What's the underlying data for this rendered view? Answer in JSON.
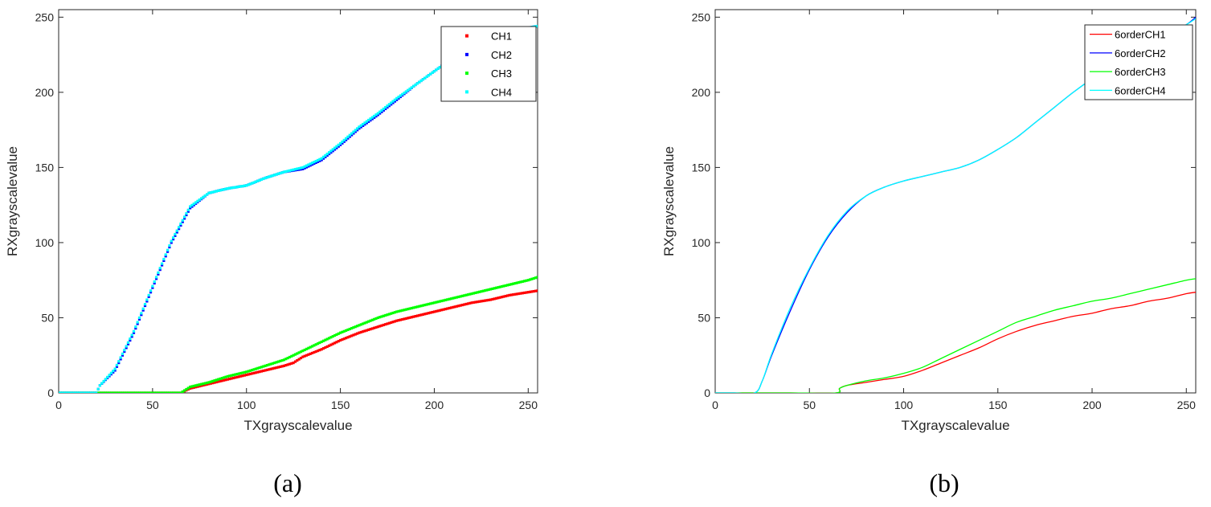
{
  "colors": {
    "ch1": "#ff0000",
    "ch2": "#0000ff",
    "ch3": "#00ff00",
    "ch4": "#00ffff"
  },
  "chart_data": [
    {
      "type": "scatter",
      "panel_label": "(a)",
      "xlabel": "TXgrayscalevalue",
      "ylabel": "RXgrayscalevalue",
      "xlim": [
        0,
        255
      ],
      "ylim": [
        0,
        255
      ],
      "xticks": [
        0,
        50,
        100,
        150,
        200,
        250
      ],
      "yticks": [
        0,
        50,
        100,
        150,
        200,
        250
      ],
      "xtick_labels": [
        "0",
        "50",
        "100",
        "150",
        "200",
        "250"
      ],
      "ytick_labels": [
        "0",
        "50",
        "100",
        "150",
        "200",
        "250"
      ],
      "grid": false,
      "legend_position": "top-right",
      "series": [
        {
          "name": "CH1",
          "color": "#ff0000",
          "points": [
            [
              0,
              0
            ],
            [
              20,
              0
            ],
            [
              40,
              0
            ],
            [
              65,
              0
            ],
            [
              70,
              3
            ],
            [
              80,
              6
            ],
            [
              90,
              9
            ],
            [
              100,
              12
            ],
            [
              110,
              15
            ],
            [
              120,
              18
            ],
            [
              125,
              20
            ],
            [
              130,
              24
            ],
            [
              140,
              29
            ],
            [
              150,
              35
            ],
            [
              160,
              40
            ],
            [
              170,
              44
            ],
            [
              180,
              48
            ],
            [
              190,
              51
            ],
            [
              200,
              54
            ],
            [
              210,
              57
            ],
            [
              220,
              60
            ],
            [
              230,
              62
            ],
            [
              240,
              65
            ],
            [
              250,
              67
            ],
            [
              255,
              68
            ]
          ]
        },
        {
          "name": "CH2",
          "color": "#0000ff",
          "points": [
            [
              0,
              0
            ],
            [
              10,
              0
            ],
            [
              20,
              0
            ],
            [
              22,
              5
            ],
            [
              30,
              15
            ],
            [
              40,
              40
            ],
            [
              50,
              70
            ],
            [
              60,
              100
            ],
            [
              70,
              123
            ],
            [
              80,
              133
            ],
            [
              90,
              136
            ],
            [
              100,
              138
            ],
            [
              110,
              143
            ],
            [
              120,
              147
            ],
            [
              130,
              149
            ],
            [
              140,
              155
            ],
            [
              150,
              165
            ],
            [
              160,
              176
            ],
            [
              170,
              185
            ],
            [
              180,
              195
            ],
            [
              190,
              205
            ],
            [
              200,
              214
            ],
            [
              210,
              223
            ],
            [
              220,
              230
            ],
            [
              230,
              236
            ],
            [
              240,
              240
            ],
            [
              250,
              243
            ],
            [
              255,
              244
            ]
          ]
        },
        {
          "name": "CH3",
          "color": "#00ff00",
          "points": [
            [
              0,
              0
            ],
            [
              20,
              0
            ],
            [
              40,
              0
            ],
            [
              65,
              0
            ],
            [
              70,
              4
            ],
            [
              80,
              7
            ],
            [
              90,
              11
            ],
            [
              100,
              14
            ],
            [
              110,
              18
            ],
            [
              120,
              22
            ],
            [
              130,
              28
            ],
            [
              140,
              34
            ],
            [
              150,
              40
            ],
            [
              160,
              45
            ],
            [
              170,
              50
            ],
            [
              180,
              54
            ],
            [
              190,
              57
            ],
            [
              200,
              60
            ],
            [
              210,
              63
            ],
            [
              220,
              66
            ],
            [
              230,
              69
            ],
            [
              240,
              72
            ],
            [
              250,
              75
            ],
            [
              255,
              77
            ]
          ]
        },
        {
          "name": "CH4",
          "color": "#00ffff",
          "points": [
            [
              0,
              0
            ],
            [
              10,
              0
            ],
            [
              20,
              0
            ],
            [
              22,
              5
            ],
            [
              30,
              16
            ],
            [
              40,
              41
            ],
            [
              50,
              71
            ],
            [
              60,
              101
            ],
            [
              70,
              124
            ],
            [
              80,
              133
            ],
            [
              90,
              136
            ],
            [
              100,
              138
            ],
            [
              110,
              143
            ],
            [
              120,
              147
            ],
            [
              130,
              150
            ],
            [
              140,
              156
            ],
            [
              150,
              166
            ],
            [
              160,
              177
            ],
            [
              170,
              186
            ],
            [
              180,
              196
            ],
            [
              190,
              205
            ],
            [
              200,
              214
            ],
            [
              210,
              223
            ],
            [
              220,
              230
            ],
            [
              230,
              235
            ],
            [
              240,
              240
            ],
            [
              250,
              243
            ],
            [
              255,
              244
            ]
          ]
        }
      ]
    },
    {
      "type": "line",
      "panel_label": "(b)",
      "xlabel": "TXgrayscalevalue",
      "ylabel": "RXgrayscalevalue",
      "xlim": [
        0,
        255
      ],
      "ylim": [
        0,
        255
      ],
      "xticks": [
        0,
        50,
        100,
        150,
        200,
        250
      ],
      "yticks": [
        0,
        50,
        100,
        150,
        200,
        250
      ],
      "xtick_labels": [
        "0",
        "50",
        "100",
        "150",
        "200",
        "250"
      ],
      "ytick_labels": [
        "0",
        "50",
        "100",
        "150",
        "200",
        "250"
      ],
      "grid": false,
      "legend_position": "top-right",
      "series": [
        {
          "name": "6orderCH1",
          "color": "#ff0000",
          "points": [
            [
              0,
              0
            ],
            [
              20,
              0
            ],
            [
              40,
              0
            ],
            [
              64,
              0
            ],
            [
              66,
              3
            ],
            [
              70,
              5
            ],
            [
              80,
              7
            ],
            [
              90,
              9
            ],
            [
              100,
              11
            ],
            [
              110,
              15
            ],
            [
              120,
              20
            ],
            [
              130,
              25
            ],
            [
              140,
              30
            ],
            [
              150,
              36
            ],
            [
              160,
              41
            ],
            [
              170,
              45
            ],
            [
              180,
              48
            ],
            [
              190,
              51
            ],
            [
              200,
              53
            ],
            [
              210,
              56
            ],
            [
              220,
              58
            ],
            [
              230,
              61
            ],
            [
              240,
              63
            ],
            [
              250,
              66
            ],
            [
              255,
              67
            ]
          ]
        },
        {
          "name": "6orderCH2",
          "color": "#0000ff",
          "points": [
            [
              0,
              0
            ],
            [
              10,
              0
            ],
            [
              21,
              0
            ],
            [
              25,
              8
            ],
            [
              30,
              25
            ],
            [
              40,
              55
            ],
            [
              50,
              82
            ],
            [
              60,
              104
            ],
            [
              70,
              120
            ],
            [
              80,
              131
            ],
            [
              90,
              137
            ],
            [
              100,
              141
            ],
            [
              110,
              144
            ],
            [
              120,
              147
            ],
            [
              130,
              150
            ],
            [
              140,
              155
            ],
            [
              150,
              162
            ],
            [
              160,
              170
            ],
            [
              170,
              180
            ],
            [
              180,
              190
            ],
            [
              190,
              200
            ],
            [
              200,
              209
            ],
            [
              210,
              217
            ],
            [
              220,
              225
            ],
            [
              230,
              232
            ],
            [
              240,
              238
            ],
            [
              250,
              245
            ],
            [
              255,
              250
            ]
          ]
        },
        {
          "name": "6orderCH3",
          "color": "#00ff00",
          "points": [
            [
              0,
              0
            ],
            [
              20,
              0
            ],
            [
              40,
              0
            ],
            [
              64,
              0
            ],
            [
              66,
              3
            ],
            [
              70,
              5
            ],
            [
              80,
              8
            ],
            [
              90,
              10
            ],
            [
              100,
              13
            ],
            [
              110,
              17
            ],
            [
              120,
              23
            ],
            [
              130,
              29
            ],
            [
              140,
              35
            ],
            [
              150,
              41
            ],
            [
              160,
              47
            ],
            [
              170,
              51
            ],
            [
              180,
              55
            ],
            [
              190,
              58
            ],
            [
              200,
              61
            ],
            [
              210,
              63
            ],
            [
              220,
              66
            ],
            [
              230,
              69
            ],
            [
              240,
              72
            ],
            [
              250,
              75
            ],
            [
              255,
              76
            ]
          ]
        },
        {
          "name": "6orderCH4",
          "color": "#00ffff",
          "points": [
            [
              0,
              0
            ],
            [
              10,
              0
            ],
            [
              21,
              0
            ],
            [
              25,
              8
            ],
            [
              30,
              26
            ],
            [
              40,
              57
            ],
            [
              50,
              83
            ],
            [
              60,
              105
            ],
            [
              70,
              121
            ],
            [
              80,
              131
            ],
            [
              90,
              137
            ],
            [
              100,
              141
            ],
            [
              110,
              144
            ],
            [
              120,
              147
            ],
            [
              130,
              150
            ],
            [
              140,
              155
            ],
            [
              150,
              162
            ],
            [
              160,
              170
            ],
            [
              170,
              180
            ],
            [
              180,
              190
            ],
            [
              190,
              200
            ],
            [
              200,
              209
            ],
            [
              210,
              217
            ],
            [
              220,
              225
            ],
            [
              230,
              232
            ],
            [
              240,
              238
            ],
            [
              250,
              245
            ],
            [
              255,
              249
            ]
          ]
        }
      ]
    }
  ]
}
